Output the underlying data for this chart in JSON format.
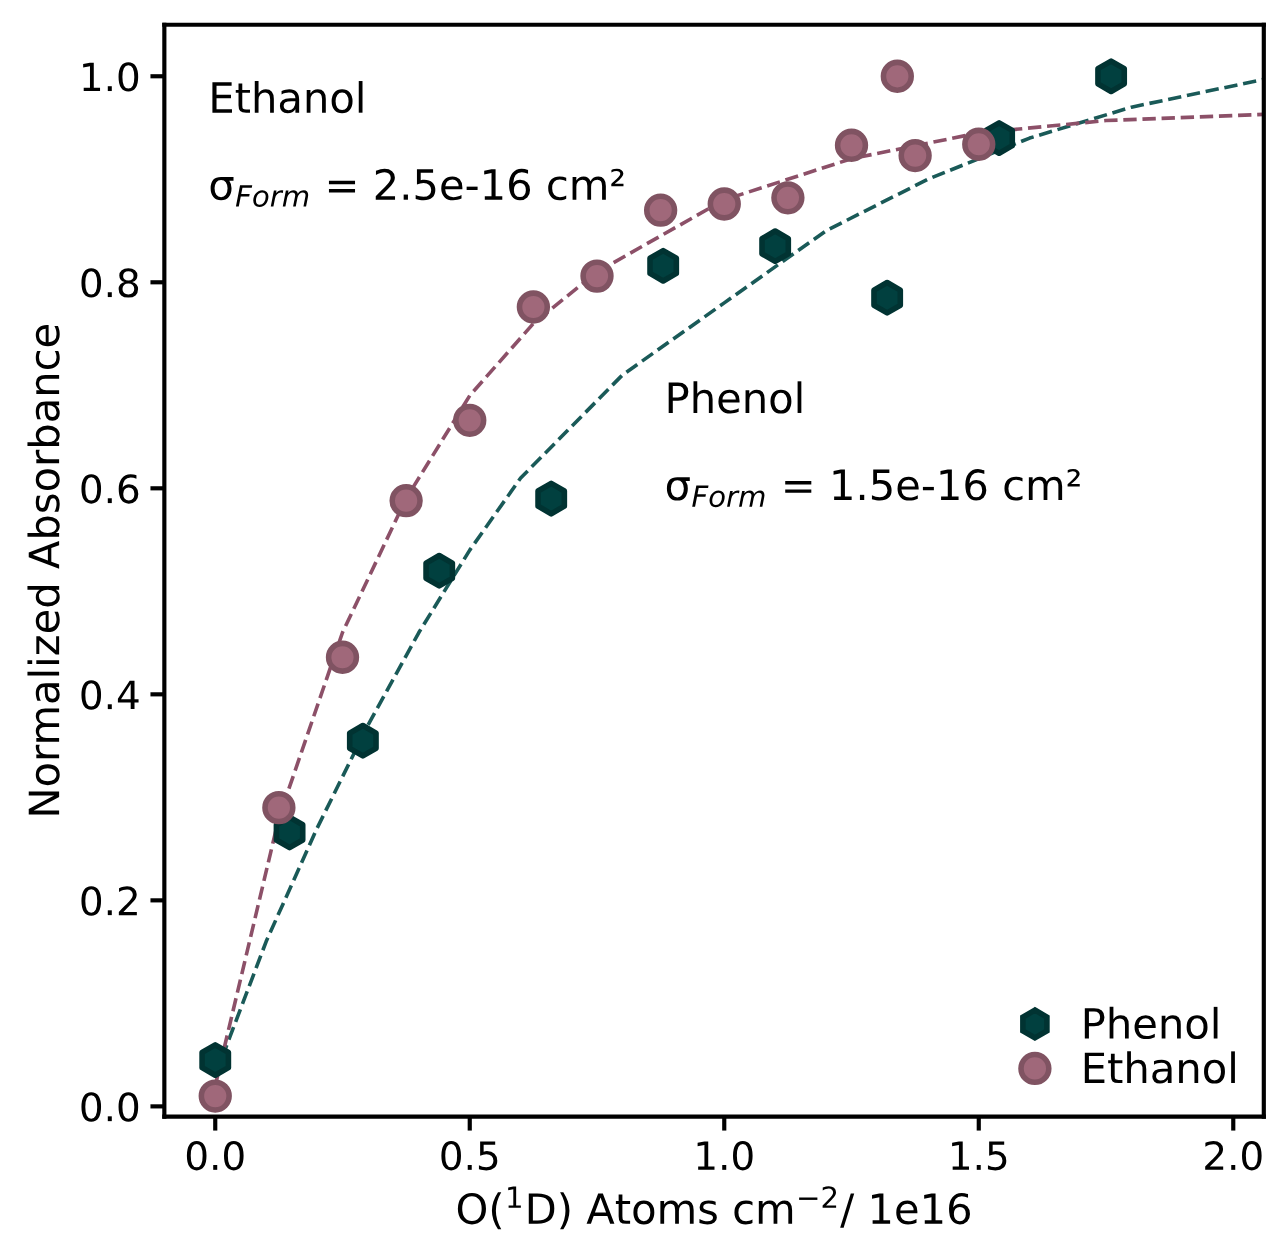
{
  "chart_data": {
    "type": "scatter",
    "xlabel": "O($^{1}$D) Atoms cm$^{−2}$/ 1e16",
    "ylabel": "Normalized Absorbance",
    "xlim": [
      -0.1,
      2.06
    ],
    "ylim": [
      -0.01,
      1.05
    ],
    "xticks": [
      {
        "value": 0,
        "label": "0.0"
      },
      0.5,
      {
        "value": 1,
        "label": "1.0"
      },
      1.5,
      {
        "value": 2,
        "label": "2.0"
      }
    ],
    "yticks": [
      {
        "value": 0,
        "label": "0.0"
      },
      0.2,
      0.4,
      0.6,
      0.8,
      {
        "value": 1,
        "label": "1.0"
      }
    ],
    "grid": false,
    "legend": "bottom right",
    "annotations": [
      "Ethanol",
      "σ$_{Form}$ = 2.5e-16 cm²",
      "Phenol",
      "σ$_{Form}$ = 1.5e-16 cm²"
    ],
    "series": [
      {
        "type": "line",
        "color": "#1a5a58",
        "line_style": "dashed",
        "marker": "none",
        "x": [
          0,
          0.1,
          0.2,
          0.3,
          0.4,
          0.5,
          0.6,
          0.8,
          1.0,
          1.2,
          1.4,
          1.6,
          1.8,
          2.06
        ],
        "values": [
          0.03,
          0.16,
          0.27,
          0.37,
          0.46,
          0.54,
          0.61,
          0.71,
          0.78,
          0.85,
          0.9,
          0.94,
          0.97,
          0.997
        ]
      },
      {
        "type": "line",
        "color": "#8c5068",
        "line_style": "dashed",
        "marker": "none",
        "x": [
          0,
          0.125,
          0.25,
          0.375,
          0.5,
          0.625,
          0.75,
          1.0,
          1.25,
          1.5,
          1.75,
          2.06
        ],
        "values": [
          0.02,
          0.28,
          0.46,
          0.59,
          0.69,
          0.76,
          0.81,
          0.88,
          0.92,
          0.945,
          0.957,
          0.963
        ]
      },
      {
        "name": "Phenol",
        "color": "#01403f",
        "x": [
          0,
          0.146,
          0.29,
          0.44,
          0.66,
          0.88,
          1.1,
          1.32,
          1.54,
          1.76
        ],
        "values": [
          0.045,
          0.266,
          0.355,
          0.52,
          0.59,
          0.816,
          0.835,
          0.785,
          0.94,
          1.0
        ]
      },
      {
        "name": "Ethanol",
        "color": "#a0687a",
        "marker": "circle",
        "x": [
          0,
          0.125,
          0.25,
          0.375,
          0.5,
          0.625,
          0.75,
          0.875,
          1.0,
          1.125,
          1.25,
          1.34,
          1.375,
          1.5
        ],
        "values": [
          0.01,
          0.29,
          0.436,
          0.588,
          0.666,
          0.776,
          0.806,
          0.87,
          0.876,
          0.882,
          0.933,
          1.0,
          0.923,
          0.934
        ]
      }
    ]
  }
}
